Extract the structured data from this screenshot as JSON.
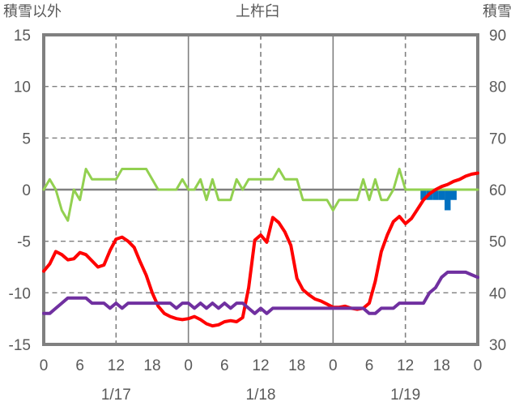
{
  "header": {
    "left_axis_title": "積雪以外",
    "chart_title": "上杵臼",
    "right_axis_title": "積雪"
  },
  "chart_data": {
    "type": "line",
    "title": "上杵臼",
    "x_axis": {
      "unit": "hour",
      "total_hours": 72,
      "tick_step_hours": 6,
      "tick_labels": [
        "0",
        "6",
        "12",
        "18",
        "0",
        "6",
        "12",
        "18",
        "0",
        "6",
        "12",
        "18",
        "0"
      ],
      "date_labels": [
        "1/17",
        "1/18",
        "1/19"
      ]
    },
    "left_axis": {
      "title": "積雪以外",
      "min": -15,
      "max": 15,
      "tick_values": [
        15,
        10,
        5,
        0,
        -5,
        -10,
        -15
      ],
      "tick_labels": [
        "15",
        "10",
        "5",
        "0",
        "-5",
        "-10",
        "-15"
      ]
    },
    "right_axis": {
      "title": "積雪",
      "min": 30,
      "max": 90,
      "tick_labels": [
        "90",
        "80",
        "70",
        "60",
        "50",
        "40",
        "30"
      ]
    },
    "grid": {
      "horizontal_dashed_at_left_values": [
        10,
        5,
        -5,
        -10
      ],
      "zero_line_at": 0,
      "vertical_dashed_at_hours": [
        12,
        36,
        60
      ],
      "vertical_solid_at_hours": [
        24,
        48
      ]
    },
    "colors": {
      "red": "#ff0000",
      "green": "#92d050",
      "purple": "#7030a0",
      "blue": "#0070c0",
      "grid": "#808080",
      "text": "#595959"
    },
    "draw_order": [
      "blue-bars",
      "green-line",
      "red-line",
      "purple-line"
    ],
    "series": [
      {
        "name": "green-line",
        "color": "#92d050",
        "axis": "left",
        "width": 3,
        "values": [
          0,
          1,
          0,
          -2,
          -3,
          0,
          -1,
          2,
          1,
          1,
          1,
          1,
          1,
          2,
          2,
          2,
          2,
          2,
          1,
          0,
          0,
          0,
          0,
          1,
          0,
          0,
          1,
          -1,
          1,
          -1,
          -1,
          -1,
          1,
          0,
          1,
          1,
          1,
          1,
          1,
          2,
          1,
          1,
          1,
          -1,
          -1,
          -1,
          -1,
          -1,
          -2,
          -1,
          -1,
          -1,
          -1,
          1,
          -1,
          1,
          -1,
          -1,
          0,
          2,
          0,
          0,
          0,
          0,
          0,
          0,
          0,
          0,
          0,
          0,
          0,
          0,
          0
        ]
      },
      {
        "name": "red-line",
        "color": "#ff0000",
        "axis": "left",
        "width": 4,
        "values": [
          -7.9,
          -7.2,
          -6.0,
          -6.3,
          -6.8,
          -6.7,
          -6.1,
          -6.3,
          -6.9,
          -7.5,
          -7.3,
          -5.9,
          -4.8,
          -4.6,
          -5.0,
          -5.6,
          -7.0,
          -8.3,
          -10.0,
          -11.3,
          -12.0,
          -12.3,
          -12.5,
          -12.6,
          -12.5,
          -12.3,
          -12.6,
          -13.0,
          -13.2,
          -13.1,
          -12.8,
          -12.7,
          -12.8,
          -12.4,
          -9.5,
          -4.9,
          -4.4,
          -5.1,
          -2.7,
          -3.2,
          -4.1,
          -5.4,
          -8.6,
          -9.7,
          -10.2,
          -10.6,
          -10.8,
          -11.1,
          -11.4,
          -11.4,
          -11.3,
          -11.5,
          -11.6,
          -11.5,
          -11.0,
          -8.9,
          -6.0,
          -4.4,
          -3.1,
          -2.6,
          -3.3,
          -2.8,
          -1.9,
          -1.0,
          -0.4,
          0.0,
          0.3,
          0.5,
          0.8,
          1.0,
          1.3,
          1.5,
          1.6
        ]
      },
      {
        "name": "purple-line",
        "color": "#7030a0",
        "axis": "right",
        "width": 4,
        "values": [
          36,
          36,
          37,
          38,
          39,
          39,
          39,
          39,
          38,
          38,
          38,
          37,
          38,
          37,
          38,
          38,
          38,
          38,
          38,
          38,
          38,
          38,
          37,
          38,
          38,
          37,
          38,
          37,
          38,
          37,
          38,
          37,
          38,
          38,
          37,
          36,
          37,
          36,
          37,
          37,
          37,
          37,
          37,
          37,
          37,
          37,
          37,
          37,
          37,
          37,
          37,
          37,
          37,
          37,
          36,
          36,
          37,
          37,
          37,
          38,
          38,
          38,
          38,
          38,
          40,
          41,
          43,
          44,
          44,
          44,
          44,
          43.5,
          43
        ]
      }
    ],
    "bars": [
      {
        "name": "blue-bars",
        "color": "#0070c0",
        "axis": "left",
        "baseline": 0,
        "points": [
          {
            "hour": 63,
            "value": -1
          },
          {
            "hour": 64,
            "value": -1
          },
          {
            "hour": 65,
            "value": -1
          },
          {
            "hour": 66,
            "value": -1
          },
          {
            "hour": 67,
            "value": -2
          },
          {
            "hour": 68,
            "value": -1
          }
        ]
      }
    ]
  }
}
